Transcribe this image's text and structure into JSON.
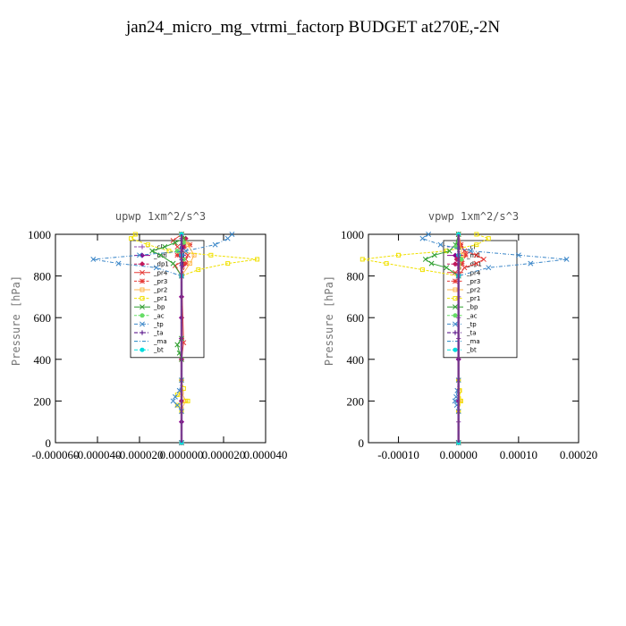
{
  "page_title": "jan24_micro_mg_vtrmi_factorp  BUDGET at270E,-2N",
  "chart_data": [
    {
      "type": "line",
      "title": "upwp   1xm^2/s^3",
      "ylabel": "Pressure [hPa]",
      "xlabel": "",
      "ylim": [
        1000,
        0
      ],
      "xlim": [
        -6e-05,
        4e-05
      ],
      "xticks": [
        -6e-05,
        -4e-05,
        -2e-05,
        0.0,
        2e-05,
        4e-05
      ],
      "xtick_labels": [
        "-0.000060",
        "-0.000040",
        "-0.000020",
        "0.000000",
        "0.000020",
        "0.000040"
      ],
      "yticks": [
        0,
        200,
        400,
        600,
        800,
        1000
      ],
      "ytick_labels": [
        "0",
        "200",
        "400",
        "600",
        "800",
        "1000"
      ],
      "legend_position": "top-right",
      "series": [
        {
          "name": "_cl",
          "color": "#8e44ad",
          "marker": "plus",
          "y": [
            0,
            100,
            200,
            300,
            400,
            500,
            600,
            700,
            800,
            850,
            880,
            900,
            920,
            950,
            980,
            1000
          ],
          "x": [
            0,
            0,
            0,
            0,
            0,
            0,
            0,
            0,
            0,
            0,
            0,
            0,
            0,
            0,
            0,
            0
          ]
        },
        {
          "name": "_mfl",
          "color": "#8b008b",
          "marker": "diamond",
          "y": [
            0,
            100,
            200,
            300,
            400,
            500,
            600,
            700,
            800,
            850,
            900,
            950,
            1000
          ],
          "x": [
            0,
            0,
            0,
            0,
            0,
            0,
            0,
            0,
            0,
            5e-07,
            -5e-07,
            1e-06,
            0
          ]
        },
        {
          "name": "_dp1",
          "color": "#c2185b",
          "marker": "diamond",
          "y": [
            0,
            200,
            400,
            800,
            860,
            900,
            940,
            980,
            1000
          ],
          "x": [
            0,
            0,
            0,
            0,
            1e-06,
            -1e-06,
            1e-06,
            2e-06,
            0
          ]
        },
        {
          "name": "_pr4",
          "color": "#e53935",
          "marker": "x",
          "y": [
            0,
            400,
            480,
            800,
            850,
            880,
            900,
            940,
            970,
            1000
          ],
          "x": [
            0,
            0,
            1e-06,
            0,
            -3e-06,
            2e-06,
            3e-06,
            -2e-06,
            -4e-06,
            0
          ]
        },
        {
          "name": "_pr3",
          "color": "#e53935",
          "marker": "star",
          "y": [
            0,
            800,
            860,
            900,
            950,
            1000
          ],
          "x": [
            0,
            0,
            2e-06,
            -2e-06,
            4e-06,
            0
          ]
        },
        {
          "name": "_pr2",
          "color": "#ffb74d",
          "marker": "square",
          "y": [
            0,
            160,
            200,
            240,
            300,
            800,
            860,
            900,
            950,
            1000
          ],
          "x": [
            0,
            0,
            2e-06,
            0,
            0,
            0,
            4e-06,
            6e-06,
            3e-06,
            0
          ]
        },
        {
          "name": "_pr1",
          "color": "#f0e000",
          "marker": "square",
          "y": [
            0,
            150,
            180,
            200,
            230,
            260,
            300,
            800,
            830,
            860,
            880,
            900,
            920,
            950,
            980,
            1000
          ],
          "x": [
            0,
            0,
            -2e-06,
            3e-06,
            -2e-06,
            1e-06,
            0,
            0,
            8e-06,
            2.2e-05,
            3.6e-05,
            1.4e-05,
            -6e-06,
            -1.6e-05,
            -2.4e-05,
            -2.2e-05
          ]
        },
        {
          "name": "_bp",
          "color": "#2e9e2e",
          "marker": "x",
          "y": [
            0,
            400,
            430,
            470,
            500,
            800,
            860,
            900,
            920,
            940,
            960,
            980,
            1000
          ],
          "x": [
            0,
            0,
            -1e-06,
            -2e-06,
            0,
            0,
            -4e-06,
            -1e-05,
            -1.4e-05,
            -8e-06,
            -3e-06,
            1e-06,
            0
          ]
        },
        {
          "name": "_ac",
          "color": "#66dd66",
          "marker": "circle",
          "y": [
            0,
            800,
            880,
            920,
            960,
            1000
          ],
          "x": [
            0,
            0,
            1e-06,
            -2e-06,
            1e-06,
            0
          ]
        },
        {
          "name": "_tp",
          "color": "#3a86c8",
          "marker": "x",
          "y": [
            0,
            150,
            180,
            200,
            220,
            250,
            300,
            800,
            840,
            860,
            880,
            900,
            920,
            950,
            980,
            1000
          ],
          "x": [
            0,
            0,
            -2e-06,
            -4e-06,
            -3e-06,
            -1e-06,
            0,
            0,
            -1.2e-05,
            -3e-05,
            -4.2e-05,
            -2e-05,
            2e-06,
            1.6e-05,
            2.2e-05,
            2.4e-05
          ]
        },
        {
          "name": "_ta",
          "color": "#4b0082",
          "marker": "plus",
          "y": [
            0,
            800,
            900,
            1000
          ],
          "x": [
            0,
            0,
            1e-06,
            0
          ]
        },
        {
          "name": "_ma",
          "color": "#1e88c5",
          "marker": "none",
          "y": [
            0,
            800,
            900,
            1000
          ],
          "x": [
            0,
            0,
            -1e-06,
            0
          ]
        },
        {
          "name": "_bt",
          "color": "#00dddd",
          "marker": "circle",
          "y": [
            0,
            800,
            900,
            1000
          ],
          "x": [
            0,
            0,
            0,
            0
          ]
        }
      ]
    },
    {
      "type": "line",
      "title": "vpwp   1xm^2/s^3",
      "ylabel": "Pressure [hPa]",
      "xlabel": "",
      "ylim": [
        1000,
        0
      ],
      "xlim": [
        -0.00015,
        0.0002
      ],
      "xticks": [
        -0.0001,
        0.0,
        0.0001,
        0.0002
      ],
      "xtick_labels": [
        "-0.00010",
        "0.00000",
        "0.00010",
        "0.00020"
      ],
      "yticks": [
        0,
        200,
        400,
        600,
        800,
        1000
      ],
      "ytick_labels": [
        "0",
        "200",
        "400",
        "600",
        "800",
        "1000"
      ],
      "legend_position": "top-right",
      "series": [
        {
          "name": "_cl",
          "color": "#8e44ad",
          "marker": "plus",
          "y": [
            0,
            100,
            200,
            300,
            400,
            500,
            600,
            700,
            800,
            850,
            900,
            950,
            1000
          ],
          "x": [
            0,
            0,
            0,
            0,
            0,
            0,
            0,
            0,
            0,
            0,
            0,
            0,
            0
          ]
        },
        {
          "name": "_mfl",
          "color": "#8b008b",
          "marker": "diamond",
          "y": [
            0,
            200,
            400,
            800,
            880,
            940,
            1000
          ],
          "x": [
            0,
            0,
            0,
            0,
            2e-06,
            -2e-06,
            0
          ]
        },
        {
          "name": "_dp1",
          "color": "#c2185b",
          "marker": "diamond",
          "y": [
            0,
            800,
            880,
            940,
            1000
          ],
          "x": [
            0,
            0,
            -3e-06,
            3e-06,
            0
          ]
        },
        {
          "name": "_pr4",
          "color": "#e53935",
          "marker": "x",
          "y": [
            0,
            800,
            840,
            860,
            880,
            900,
            920,
            950,
            1000
          ],
          "x": [
            0,
            0,
            1e-05,
            3e-05,
            4.2e-05,
            3e-05,
            1e-05,
            4e-06,
            0
          ]
        },
        {
          "name": "_pr3",
          "color": "#e53935",
          "marker": "star",
          "y": [
            0,
            800,
            860,
            900,
            950,
            1000
          ],
          "x": [
            0,
            0,
            6e-06,
            1.2e-05,
            4e-06,
            0
          ]
        },
        {
          "name": "_pr2",
          "color": "#ffb74d",
          "marker": "square",
          "y": [
            0,
            150,
            200,
            250,
            300,
            800,
            900,
            1000
          ],
          "x": [
            0,
            0,
            3e-06,
            1e-06,
            0,
            0,
            6e-06,
            0
          ]
        },
        {
          "name": "_pr1",
          "color": "#f0e000",
          "marker": "square",
          "y": [
            0,
            150,
            200,
            250,
            300,
            800,
            830,
            860,
            880,
            900,
            920,
            950,
            980,
            1000
          ],
          "x": [
            0,
            0,
            4e-06,
            2e-06,
            0,
            0,
            -6e-05,
            -0.00012,
            -0.00016,
            -0.0001,
            -2e-05,
            3e-05,
            5e-05,
            3e-05
          ]
        },
        {
          "name": "_bp",
          "color": "#2e9e2e",
          "marker": "x",
          "y": [
            0,
            800,
            840,
            860,
            880,
            900,
            920,
            950,
            1000
          ],
          "x": [
            0,
            0,
            -2e-05,
            -4.5e-05,
            -5.5e-05,
            -4e-05,
            -1.5e-05,
            -5e-06,
            0
          ]
        },
        {
          "name": "_ac",
          "color": "#66dd66",
          "marker": "circle",
          "y": [
            0,
            800,
            880,
            940,
            1000
          ],
          "x": [
            0,
            0,
            5e-06,
            -4e-06,
            0
          ]
        },
        {
          "name": "_tp",
          "color": "#3a86c8",
          "marker": "x",
          "y": [
            0,
            150,
            180,
            200,
            220,
            250,
            300,
            800,
            840,
            860,
            880,
            900,
            920,
            950,
            980,
            1000
          ],
          "x": [
            0,
            0,
            -3e-06,
            -6e-06,
            -4e-06,
            -2e-06,
            0,
            0,
            5e-05,
            0.00012,
            0.00018,
            0.0001,
            2e-05,
            -3e-05,
            -6e-05,
            -5e-05
          ]
        },
        {
          "name": "_ta",
          "color": "#4b0082",
          "marker": "plus",
          "y": [
            0,
            800,
            900,
            1000
          ],
          "x": [
            0,
            0,
            2e-06,
            0
          ]
        },
        {
          "name": "_ma",
          "color": "#1e88c5",
          "marker": "none",
          "y": [
            0,
            800,
            900,
            1000
          ],
          "x": [
            0,
            0,
            -2e-06,
            0
          ]
        },
        {
          "name": "_bt",
          "color": "#00dddd",
          "marker": "circle",
          "y": [
            0,
            800,
            900,
            1000
          ],
          "x": [
            0,
            0,
            0,
            0
          ]
        }
      ]
    }
  ]
}
